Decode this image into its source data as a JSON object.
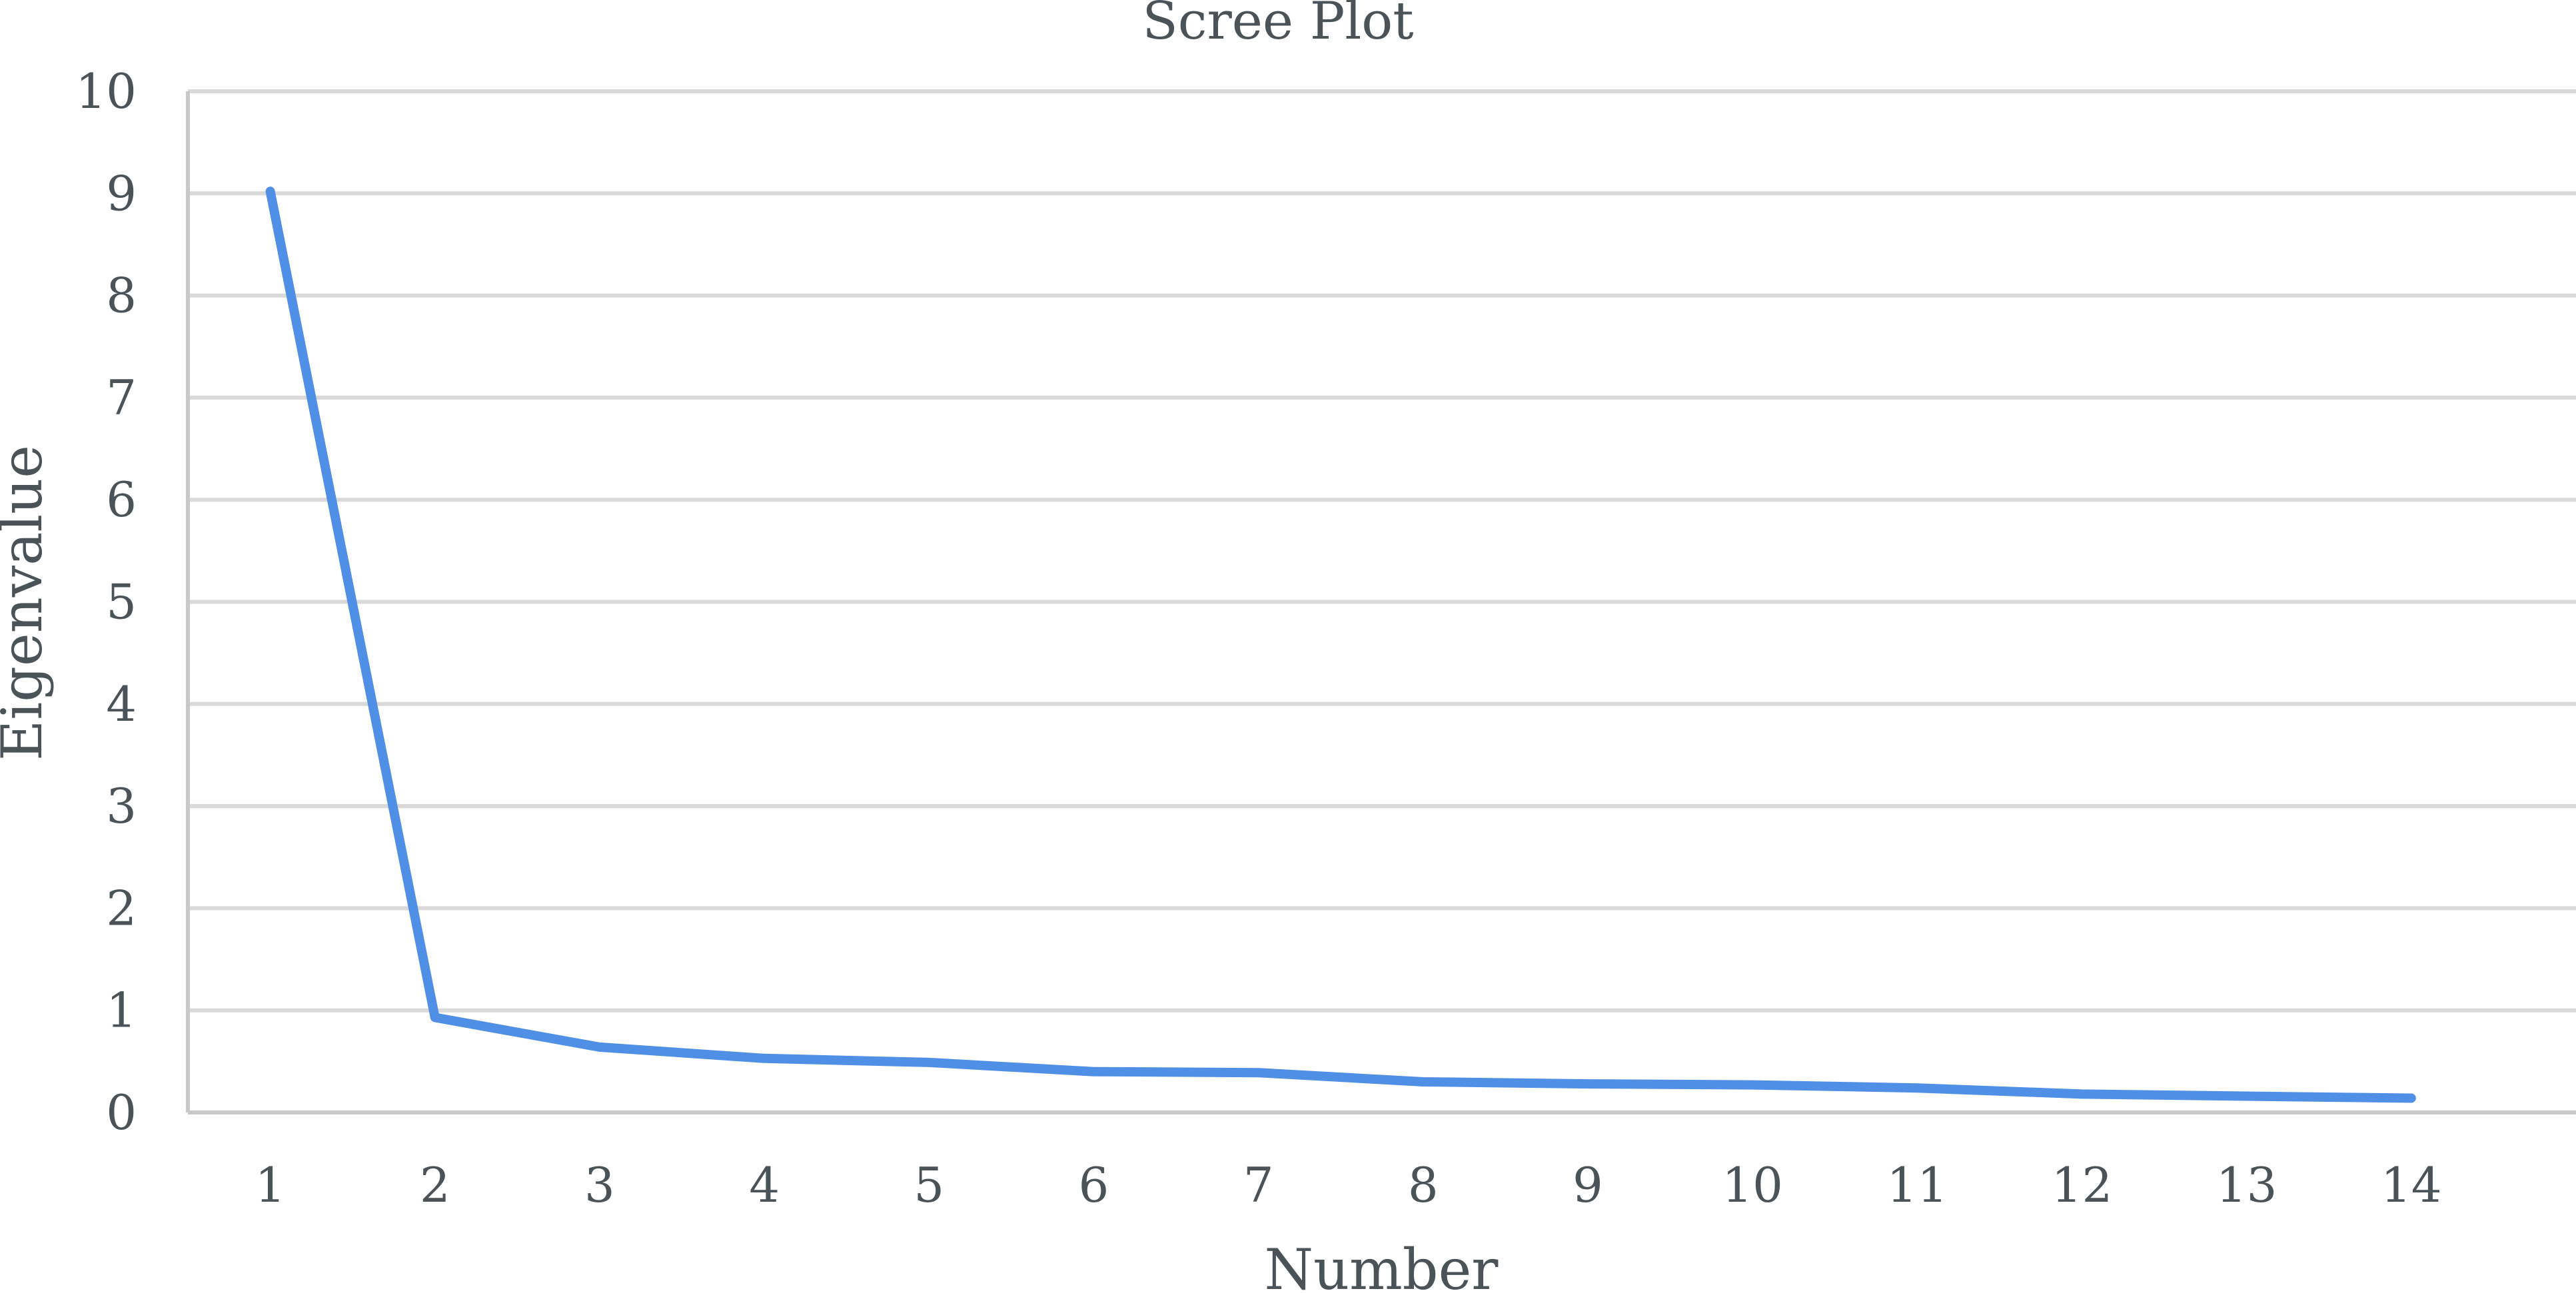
{
  "chart_data": {
    "type": "line",
    "title": "Scree Plot",
    "xlabel": "Number",
    "ylabel": "Eigenvalue",
    "x": [
      1,
      2,
      3,
      4,
      5,
      6,
      7,
      8,
      9,
      10,
      11,
      12,
      13,
      14
    ],
    "series": [
      {
        "values": [
          9.02,
          0.93,
          0.64,
          0.53,
          0.49,
          0.4,
          0.39,
          0.3,
          0.28,
          0.27,
          0.24,
          0.18,
          0.16,
          0.14
        ]
      }
    ],
    "xticks": [
      "1",
      "2",
      "3",
      "4",
      "5",
      "6",
      "7",
      "8",
      "9",
      "10",
      "11",
      "12",
      "13",
      "14"
    ],
    "yticks": [
      0,
      1,
      2,
      3,
      4,
      5,
      6,
      7,
      8,
      9,
      10
    ],
    "ylim": [
      0,
      10
    ],
    "grid": true,
    "legend": "none",
    "colors": {
      "line": "#4f8fe6",
      "grid": "#d9d9d9",
      "text": "#4a5358"
    }
  }
}
